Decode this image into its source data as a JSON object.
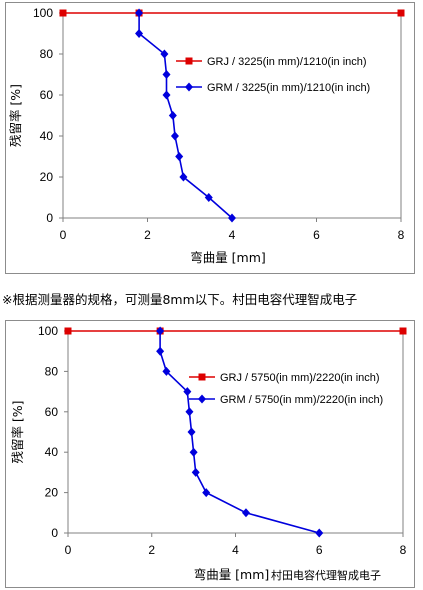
{
  "note": "※根据测量器的规格，可测量8mm以下。村田电容代理智成电子",
  "chart_data": [
    {
      "type": "line",
      "xlabel": "弯曲量 [mm]",
      "ylabel": "残留率 [%]",
      "xlim": [
        0,
        8
      ],
      "ylim": [
        0,
        100
      ],
      "x_ticks": [
        0,
        2,
        4,
        6,
        8
      ],
      "y_ticks": [
        0,
        20,
        40,
        60,
        80,
        100
      ],
      "grid": false,
      "legend": "top-right",
      "watermark": "",
      "series": [
        {
          "name": "GRJ / 3225(in mm)/1210(in inch)",
          "color": "#dd0000",
          "marker": "square",
          "points": [
            [
              0,
              100
            ],
            [
              1.8,
              100
            ],
            [
              8,
              100
            ]
          ]
        },
        {
          "name": "GRM / 3225(in mm)/1210(in inch)",
          "color": "#0000dd",
          "marker": "diamond",
          "points": [
            [
              1.8,
              100
            ],
            [
              1.8,
              90
            ],
            [
              2.4,
              80
            ],
            [
              2.45,
              70
            ],
            [
              2.45,
              60
            ],
            [
              2.6,
              50
            ],
            [
              2.65,
              40
            ],
            [
              2.75,
              30
            ],
            [
              2.85,
              20
            ],
            [
              3.45,
              10
            ],
            [
              4.0,
              0
            ]
          ]
        }
      ]
    },
    {
      "type": "line",
      "xlabel": "弯曲量 [mm]",
      "ylabel": "残留率 [%]",
      "xlim": [
        0,
        8
      ],
      "ylim": [
        0,
        100
      ],
      "x_ticks": [
        0,
        2,
        4,
        6,
        8
      ],
      "y_ticks": [
        0,
        20,
        40,
        60,
        80,
        100
      ],
      "grid": false,
      "legend": "top-right",
      "watermark": "村田电容代理智成电子",
      "series": [
        {
          "name": "GRJ / 5750(in mm)/2220(in inch)",
          "color": "#dd0000",
          "marker": "square",
          "points": [
            [
              0,
              100
            ],
            [
              2.2,
              100
            ],
            [
              8,
              100
            ]
          ]
        },
        {
          "name": "GRM / 5750(in mm)/2220(in inch)",
          "color": "#0000dd",
          "marker": "diamond",
          "points": [
            [
              2.2,
              100
            ],
            [
              2.2,
              90
            ],
            [
              2.35,
              80
            ],
            [
              2.85,
              70
            ],
            [
              2.9,
              60
            ],
            [
              2.95,
              50
            ],
            [
              3.0,
              40
            ],
            [
              3.05,
              30
            ],
            [
              3.3,
              20
            ],
            [
              4.25,
              10
            ],
            [
              6.0,
              0
            ]
          ]
        }
      ]
    }
  ]
}
